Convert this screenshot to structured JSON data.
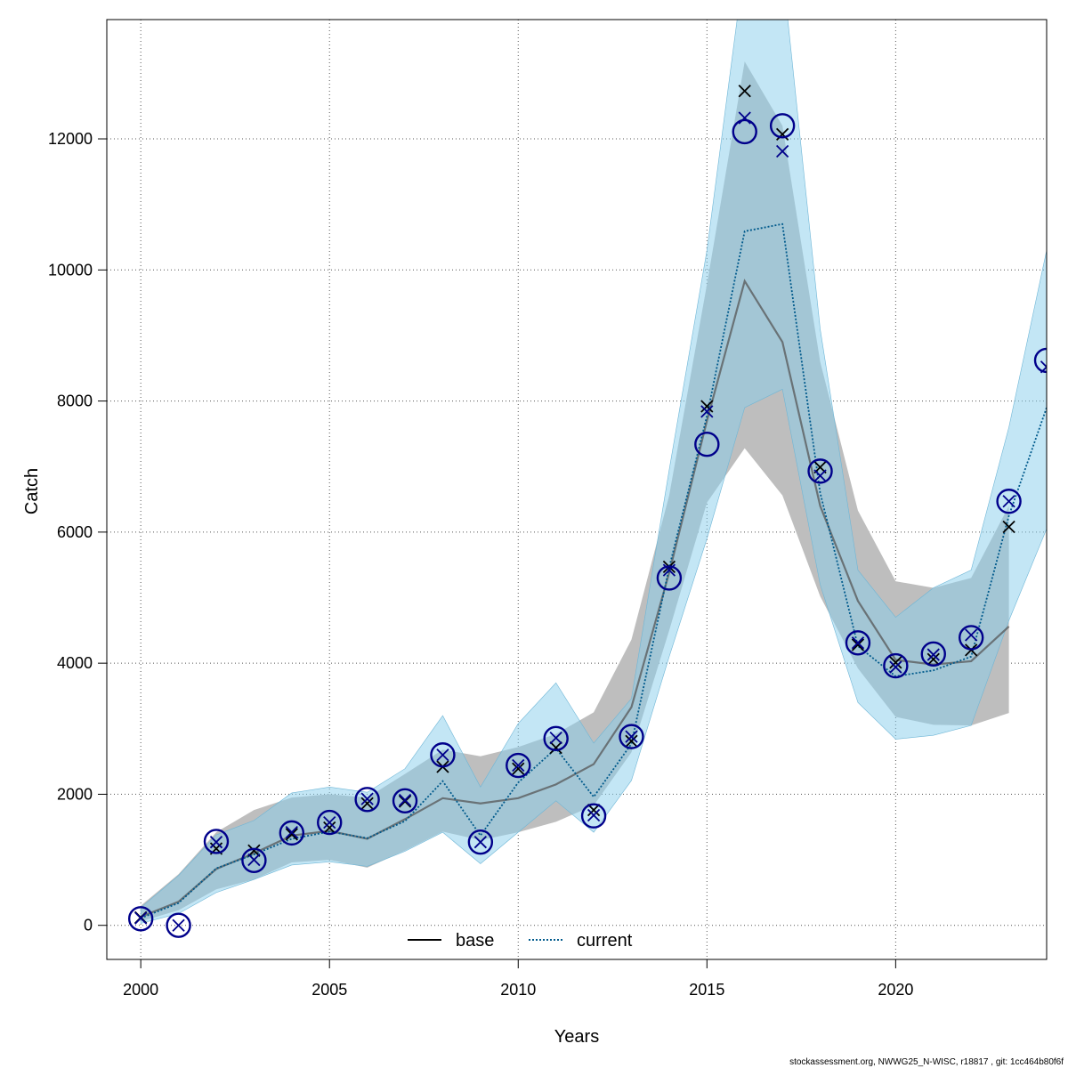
{
  "chart_data": {
    "type": "line",
    "xlabel": "Years",
    "ylabel": "Catch",
    "xlim": [
      1999.1,
      2024
    ],
    "ylim": [
      -520,
      13820
    ],
    "x_ticks": [
      2000,
      2005,
      2010,
      2015,
      2020
    ],
    "y_ticks": [
      0,
      2000,
      4000,
      6000,
      8000,
      10000,
      12000
    ],
    "grid": true,
    "legend_position": "bottom-center",
    "footer": "stockassessment.org, NWWG25_N-WISC, r18817 , git: 1cc464b80f6f",
    "x": [
      2000,
      2001,
      2002,
      2003,
      2004,
      2005,
      2006,
      2007,
      2008,
      2009,
      2010,
      2011,
      2012,
      2013,
      2014,
      2015,
      2016,
      2017,
      2018,
      2019,
      2020,
      2021,
      2022,
      2023,
      2024
    ],
    "series": [
      {
        "name": "base",
        "color": "#000000",
        "line_style": "solid",
        "band_color": "#bebebe",
        "values": [
          130,
          360,
          860,
          1100,
          1370,
          1440,
          1320,
          1620,
          1940,
          1860,
          1940,
          2150,
          2460,
          3330,
          5380,
          7700,
          9830,
          8900,
          6400,
          4950,
          4050,
          3980,
          4030,
          4560,
          null
        ],
        "lower": [
          60,
          230,
          550,
          700,
          960,
          1000,
          880,
          1140,
          1430,
          1300,
          1420,
          1580,
          1830,
          2640,
          4500,
          6450,
          7280,
          6560,
          5020,
          3920,
          3180,
          3060,
          3050,
          3240,
          null
        ],
        "upper": [
          300,
          780,
          1420,
          1760,
          1950,
          2000,
          1950,
          2310,
          2680,
          2580,
          2720,
          2920,
          3250,
          4360,
          6560,
          9780,
          13180,
          12200,
          8600,
          6330,
          5250,
          5150,
          5300,
          6400,
          null
        ],
        "obs_cross": [
          120,
          null,
          1170,
          1140,
          1390,
          1490,
          1860,
          1890,
          2420,
          null,
          2390,
          2710,
          1760,
          2810,
          5470,
          7920,
          12730,
          12070,
          6990,
          4280,
          4010,
          4060,
          4200,
          6080,
          null
        ]
      },
      {
        "name": "current",
        "color": "#005a8c",
        "line_style": "dotted",
        "band_color": "#87ceeb",
        "values": [
          110,
          340,
          870,
          1080,
          1320,
          1430,
          1330,
          1590,
          2200,
          1370,
          2180,
          2700,
          1960,
          2770,
          5460,
          7770,
          10590,
          10700,
          6600,
          4260,
          3800,
          3890,
          4100,
          6250,
          7900
        ],
        "lower": [
          30,
          180,
          500,
          700,
          920,
          970,
          900,
          1130,
          1420,
          940,
          1420,
          1900,
          1420,
          2210,
          4100,
          5900,
          7900,
          8180,
          5200,
          3400,
          2840,
          2900,
          3050,
          4650,
          6050
        ],
        "upper": [
          270,
          760,
          1380,
          1600,
          2020,
          2110,
          2030,
          2390,
          3200,
          2110,
          3080,
          3700,
          2780,
          3460,
          6950,
          10300,
          14700,
          14600,
          9100,
          5420,
          4700,
          5150,
          5420,
          7600,
          10300
        ],
        "obs_circle": [
          100,
          0,
          1280,
          990,
          1410,
          1570,
          1920,
          1900,
          2600,
          1270,
          2440,
          2850,
          1670,
          2880,
          5300,
          7340,
          12110,
          12200,
          6930,
          4310,
          3960,
          4140,
          4390,
          6470,
          8620
        ],
        "obs_cross": [
          110,
          0,
          1270,
          1000,
          1420,
          1570,
          1930,
          1910,
          2600,
          1270,
          2440,
          2860,
          1680,
          2880,
          5420,
          7840,
          12320,
          11810,
          6860,
          4310,
          3940,
          4130,
          4430,
          6470,
          8520
        ]
      }
    ]
  }
}
